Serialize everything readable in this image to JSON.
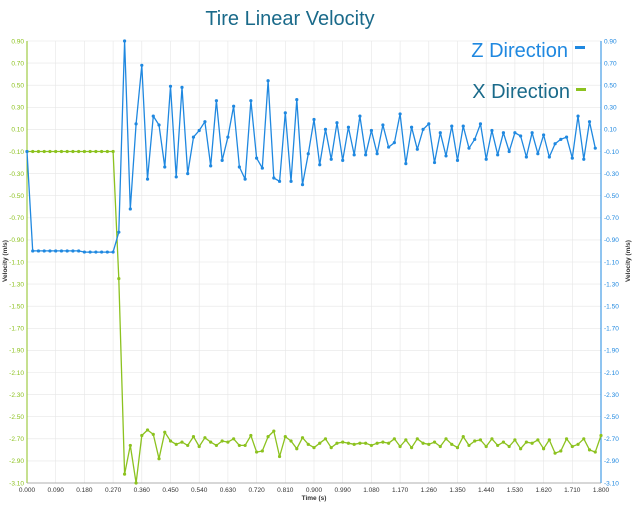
{
  "chart_data": {
    "type": "line",
    "title": "Tire Linear Velocity",
    "xlabel": "Time (s)",
    "ylabel_left": "Velocity (m/s)",
    "ylabel_right": "Velocity (m/s)",
    "xlim": [
      0,
      1.8
    ],
    "ylim": [
      -3.1,
      0.9
    ],
    "x_ticks": [
      "0.000",
      "0.090",
      "0.180",
      "0.270",
      "0.360",
      "0.450",
      "0.540",
      "0.630",
      "0.720",
      "0.810",
      "0.900",
      "0.990",
      "1.080",
      "1.170",
      "1.260",
      "1.350",
      "1.440",
      "1.530",
      "1.620",
      "1.710",
      "1.800"
    ],
    "y_ticks": [
      "0.90",
      "0.70",
      "0.50",
      "0.30",
      "0.10",
      "-0.10",
      "-0.30",
      "-0.50",
      "-0.70",
      "-0.90",
      "-1.10",
      "-1.30",
      "-1.50",
      "-1.70",
      "-1.90",
      "-2.10",
      "-2.30",
      "-2.50",
      "-2.70",
      "-2.90",
      "-3.10"
    ],
    "grid": true,
    "legend_position": "top-right",
    "colors": {
      "z": "#1f88e0",
      "x": "#8cc21f",
      "title": "#1a6a8a"
    },
    "series": [
      {
        "name": "Z Direction",
        "axis": "right",
        "x": [
          0.0,
          0.018,
          0.036,
          0.054,
          0.072,
          0.09,
          0.108,
          0.126,
          0.144,
          0.162,
          0.18,
          0.198,
          0.216,
          0.234,
          0.252,
          0.27,
          0.288,
          0.306,
          0.324,
          0.342,
          0.36,
          0.378,
          0.396,
          0.414,
          0.432,
          0.45,
          0.468,
          0.486,
          0.504,
          0.522,
          0.54,
          0.558,
          0.576,
          0.594,
          0.612,
          0.63,
          0.648,
          0.666,
          0.684,
          0.702,
          0.72,
          0.738,
          0.756,
          0.774,
          0.792,
          0.81,
          0.828,
          0.846,
          0.864,
          0.882,
          0.9,
          0.918,
          0.936,
          0.954,
          0.972,
          0.99,
          1.008,
          1.026,
          1.044,
          1.062,
          1.08,
          1.098,
          1.116,
          1.134,
          1.152,
          1.17,
          1.188,
          1.206,
          1.224,
          1.242,
          1.26,
          1.278,
          1.296,
          1.314,
          1.332,
          1.35,
          1.368,
          1.386,
          1.404,
          1.422,
          1.44,
          1.458,
          1.476,
          1.494,
          1.512,
          1.53,
          1.548,
          1.566,
          1.584,
          1.602,
          1.62,
          1.638,
          1.656,
          1.674,
          1.692,
          1.71,
          1.728,
          1.746,
          1.764,
          1.782
        ],
        "values": [
          -0.1,
          -1.0,
          -1.0,
          -1.0,
          -1.0,
          -1.0,
          -1.0,
          -1.0,
          -1.0,
          -1.0,
          -1.01,
          -1.01,
          -1.01,
          -1.01,
          -1.01,
          -1.01,
          -0.83,
          0.9,
          -0.62,
          0.15,
          0.68,
          -0.35,
          0.22,
          0.14,
          -0.24,
          0.49,
          -0.33,
          0.48,
          -0.3,
          0.03,
          0.09,
          0.17,
          -0.23,
          0.36,
          -0.18,
          0.03,
          0.31,
          -0.24,
          -0.35,
          0.36,
          -0.16,
          -0.25,
          0.54,
          -0.34,
          -0.37,
          0.25,
          -0.37,
          0.37,
          -0.4,
          -0.12,
          0.19,
          -0.22,
          0.1,
          -0.17,
          0.16,
          -0.18,
          0.12,
          -0.13,
          0.22,
          -0.13,
          0.09,
          -0.12,
          0.14,
          -0.06,
          -0.02,
          0.24,
          -0.21,
          0.12,
          -0.08,
          0.1,
          0.15,
          -0.2,
          0.07,
          -0.14,
          0.13,
          -0.18,
          0.13,
          -0.07,
          0.01,
          0.15,
          -0.17,
          0.09,
          -0.13,
          0.07,
          -0.1,
          0.07,
          0.04,
          -0.15,
          0.07,
          -0.12,
          0.05,
          -0.15,
          -0.03,
          0.01,
          0.03,
          -0.16,
          0.22,
          -0.17,
          0.17,
          -0.07
        ]
      },
      {
        "name": "X Direction",
        "axis": "left",
        "x": [
          0.0,
          0.018,
          0.036,
          0.054,
          0.072,
          0.09,
          0.108,
          0.126,
          0.144,
          0.162,
          0.18,
          0.198,
          0.216,
          0.234,
          0.252,
          0.27,
          0.288,
          0.306,
          0.324,
          0.342,
          0.36,
          0.378,
          0.396,
          0.414,
          0.432,
          0.45,
          0.468,
          0.486,
          0.504,
          0.522,
          0.54,
          0.558,
          0.576,
          0.594,
          0.612,
          0.63,
          0.648,
          0.666,
          0.684,
          0.702,
          0.72,
          0.738,
          0.756,
          0.774,
          0.792,
          0.81,
          0.828,
          0.846,
          0.864,
          0.882,
          0.9,
          0.918,
          0.936,
          0.954,
          0.972,
          0.99,
          1.008,
          1.026,
          1.044,
          1.062,
          1.08,
          1.098,
          1.116,
          1.134,
          1.152,
          1.17,
          1.188,
          1.206,
          1.224,
          1.242,
          1.26,
          1.278,
          1.296,
          1.314,
          1.332,
          1.35,
          1.368,
          1.386,
          1.404,
          1.422,
          1.44,
          1.458,
          1.476,
          1.494,
          1.512,
          1.53,
          1.548,
          1.566,
          1.584,
          1.602,
          1.62,
          1.638,
          1.656,
          1.674,
          1.692,
          1.71,
          1.728,
          1.746,
          1.764,
          1.782,
          1.8
        ],
        "values": [
          -0.1,
          -0.1,
          -0.1,
          -0.1,
          -0.1,
          -0.1,
          -0.1,
          -0.1,
          -0.1,
          -0.1,
          -0.1,
          -0.1,
          -0.1,
          -0.1,
          -0.1,
          -0.1,
          -1.25,
          -3.02,
          -2.76,
          -3.1,
          -2.67,
          -2.62,
          -2.66,
          -2.88,
          -2.64,
          -2.72,
          -2.75,
          -2.73,
          -2.76,
          -2.68,
          -2.77,
          -2.69,
          -2.73,
          -2.76,
          -2.72,
          -2.73,
          -2.7,
          -2.76,
          -2.76,
          -2.67,
          -2.82,
          -2.81,
          -2.68,
          -2.63,
          -2.86,
          -2.68,
          -2.72,
          -2.79,
          -2.69,
          -2.75,
          -2.78,
          -2.74,
          -2.7,
          -2.78,
          -2.74,
          -2.73,
          -2.74,
          -2.75,
          -2.74,
          -2.74,
          -2.76,
          -2.74,
          -2.73,
          -2.74,
          -2.7,
          -2.77,
          -2.71,
          -2.78,
          -2.7,
          -2.74,
          -2.75,
          -2.73,
          -2.77,
          -2.7,
          -2.75,
          -2.78,
          -2.68,
          -2.76,
          -2.72,
          -2.71,
          -2.77,
          -2.7,
          -2.76,
          -2.73,
          -2.77,
          -2.71,
          -2.79,
          -2.73,
          -2.74,
          -2.71,
          -2.79,
          -2.71,
          -2.83,
          -2.81,
          -2.7,
          -2.77,
          -2.75,
          -2.7,
          -2.8,
          -2.82,
          -2.67
        ]
      }
    ]
  }
}
